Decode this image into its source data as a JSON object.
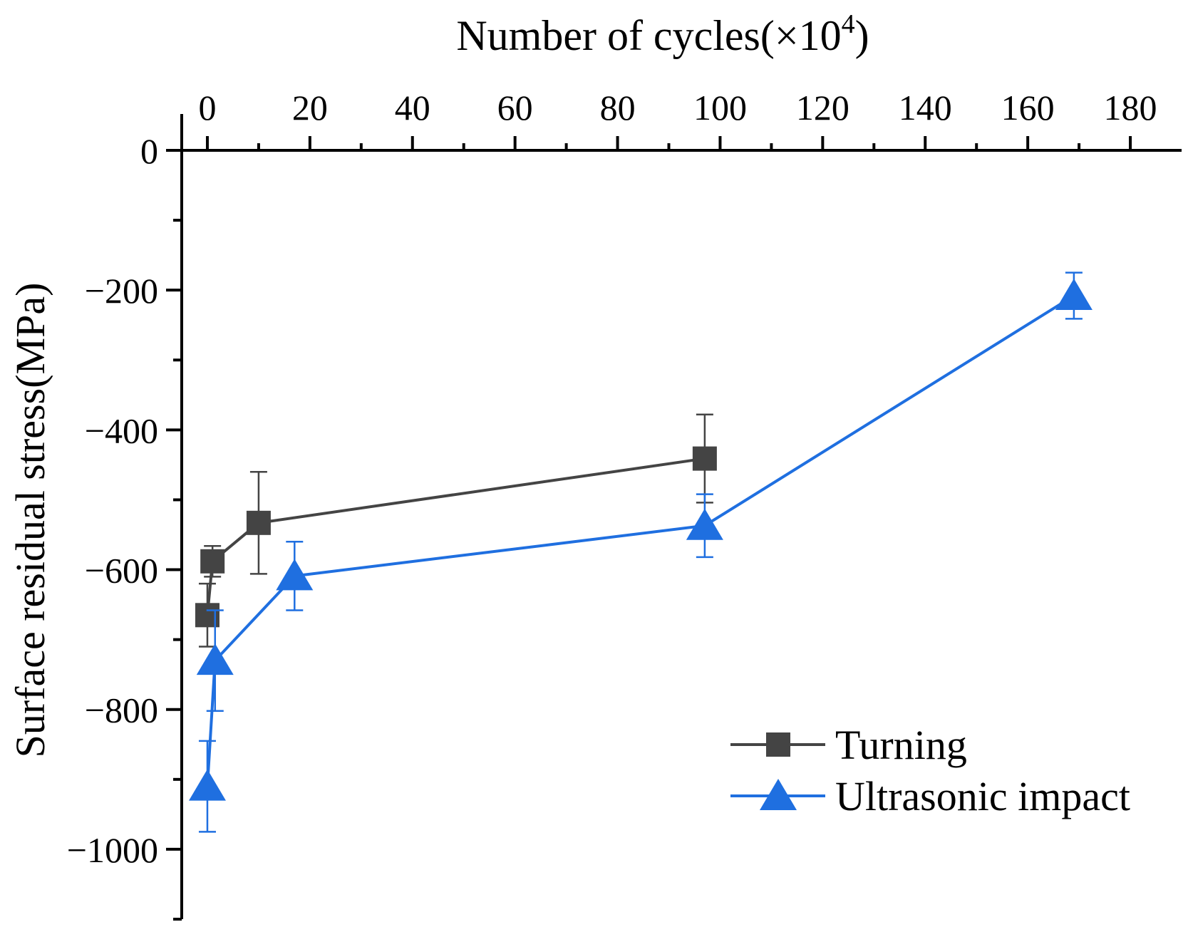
{
  "chart_data": {
    "type": "line",
    "title": "",
    "xlabel": "Number of cycles(×10",
    "xlabel_superscript": "4",
    "xlabel_close": ")",
    "ylabel": "Surface residual stress(MPa)",
    "xlim": [
      -5,
      190
    ],
    "ylim": [
      -1100,
      0
    ],
    "x_axis_position": "top",
    "x_ticks": [
      0,
      20,
      40,
      60,
      80,
      100,
      120,
      140,
      160,
      180
    ],
    "x_tick_labels": [
      "0",
      "20",
      "40",
      "60",
      "80",
      "100",
      "120",
      "140",
      "160",
      "180"
    ],
    "y_ticks": [
      0,
      -200,
      -400,
      -600,
      -800,
      -1000
    ],
    "y_tick_labels": [
      "0",
      "−200",
      "−400",
      "−600",
      "−800",
      "−1000"
    ],
    "grid": false,
    "legend_position": "bottom-right",
    "series": [
      {
        "name": "Turning",
        "color": "#444444",
        "marker": "square",
        "points": [
          {
            "x": 0,
            "y": -665,
            "err": 45
          },
          {
            "x": 1,
            "y": -588,
            "err": 22
          },
          {
            "x": 10,
            "y": -533,
            "err": 73
          },
          {
            "x": 97,
            "y": -441,
            "err": 63
          }
        ]
      },
      {
        "name": "Ultrasonic impact",
        "color": "#1f6fe0",
        "marker": "triangle",
        "points": [
          {
            "x": 0,
            "y": -910,
            "err": 65
          },
          {
            "x": 1.5,
            "y": -730,
            "err": 72
          },
          {
            "x": 17,
            "y": -609,
            "err": 49
          },
          {
            "x": 97,
            "y": -537,
            "err": 45
          },
          {
            "x": 169,
            "y": -208,
            "err": 33
          }
        ]
      }
    ]
  }
}
